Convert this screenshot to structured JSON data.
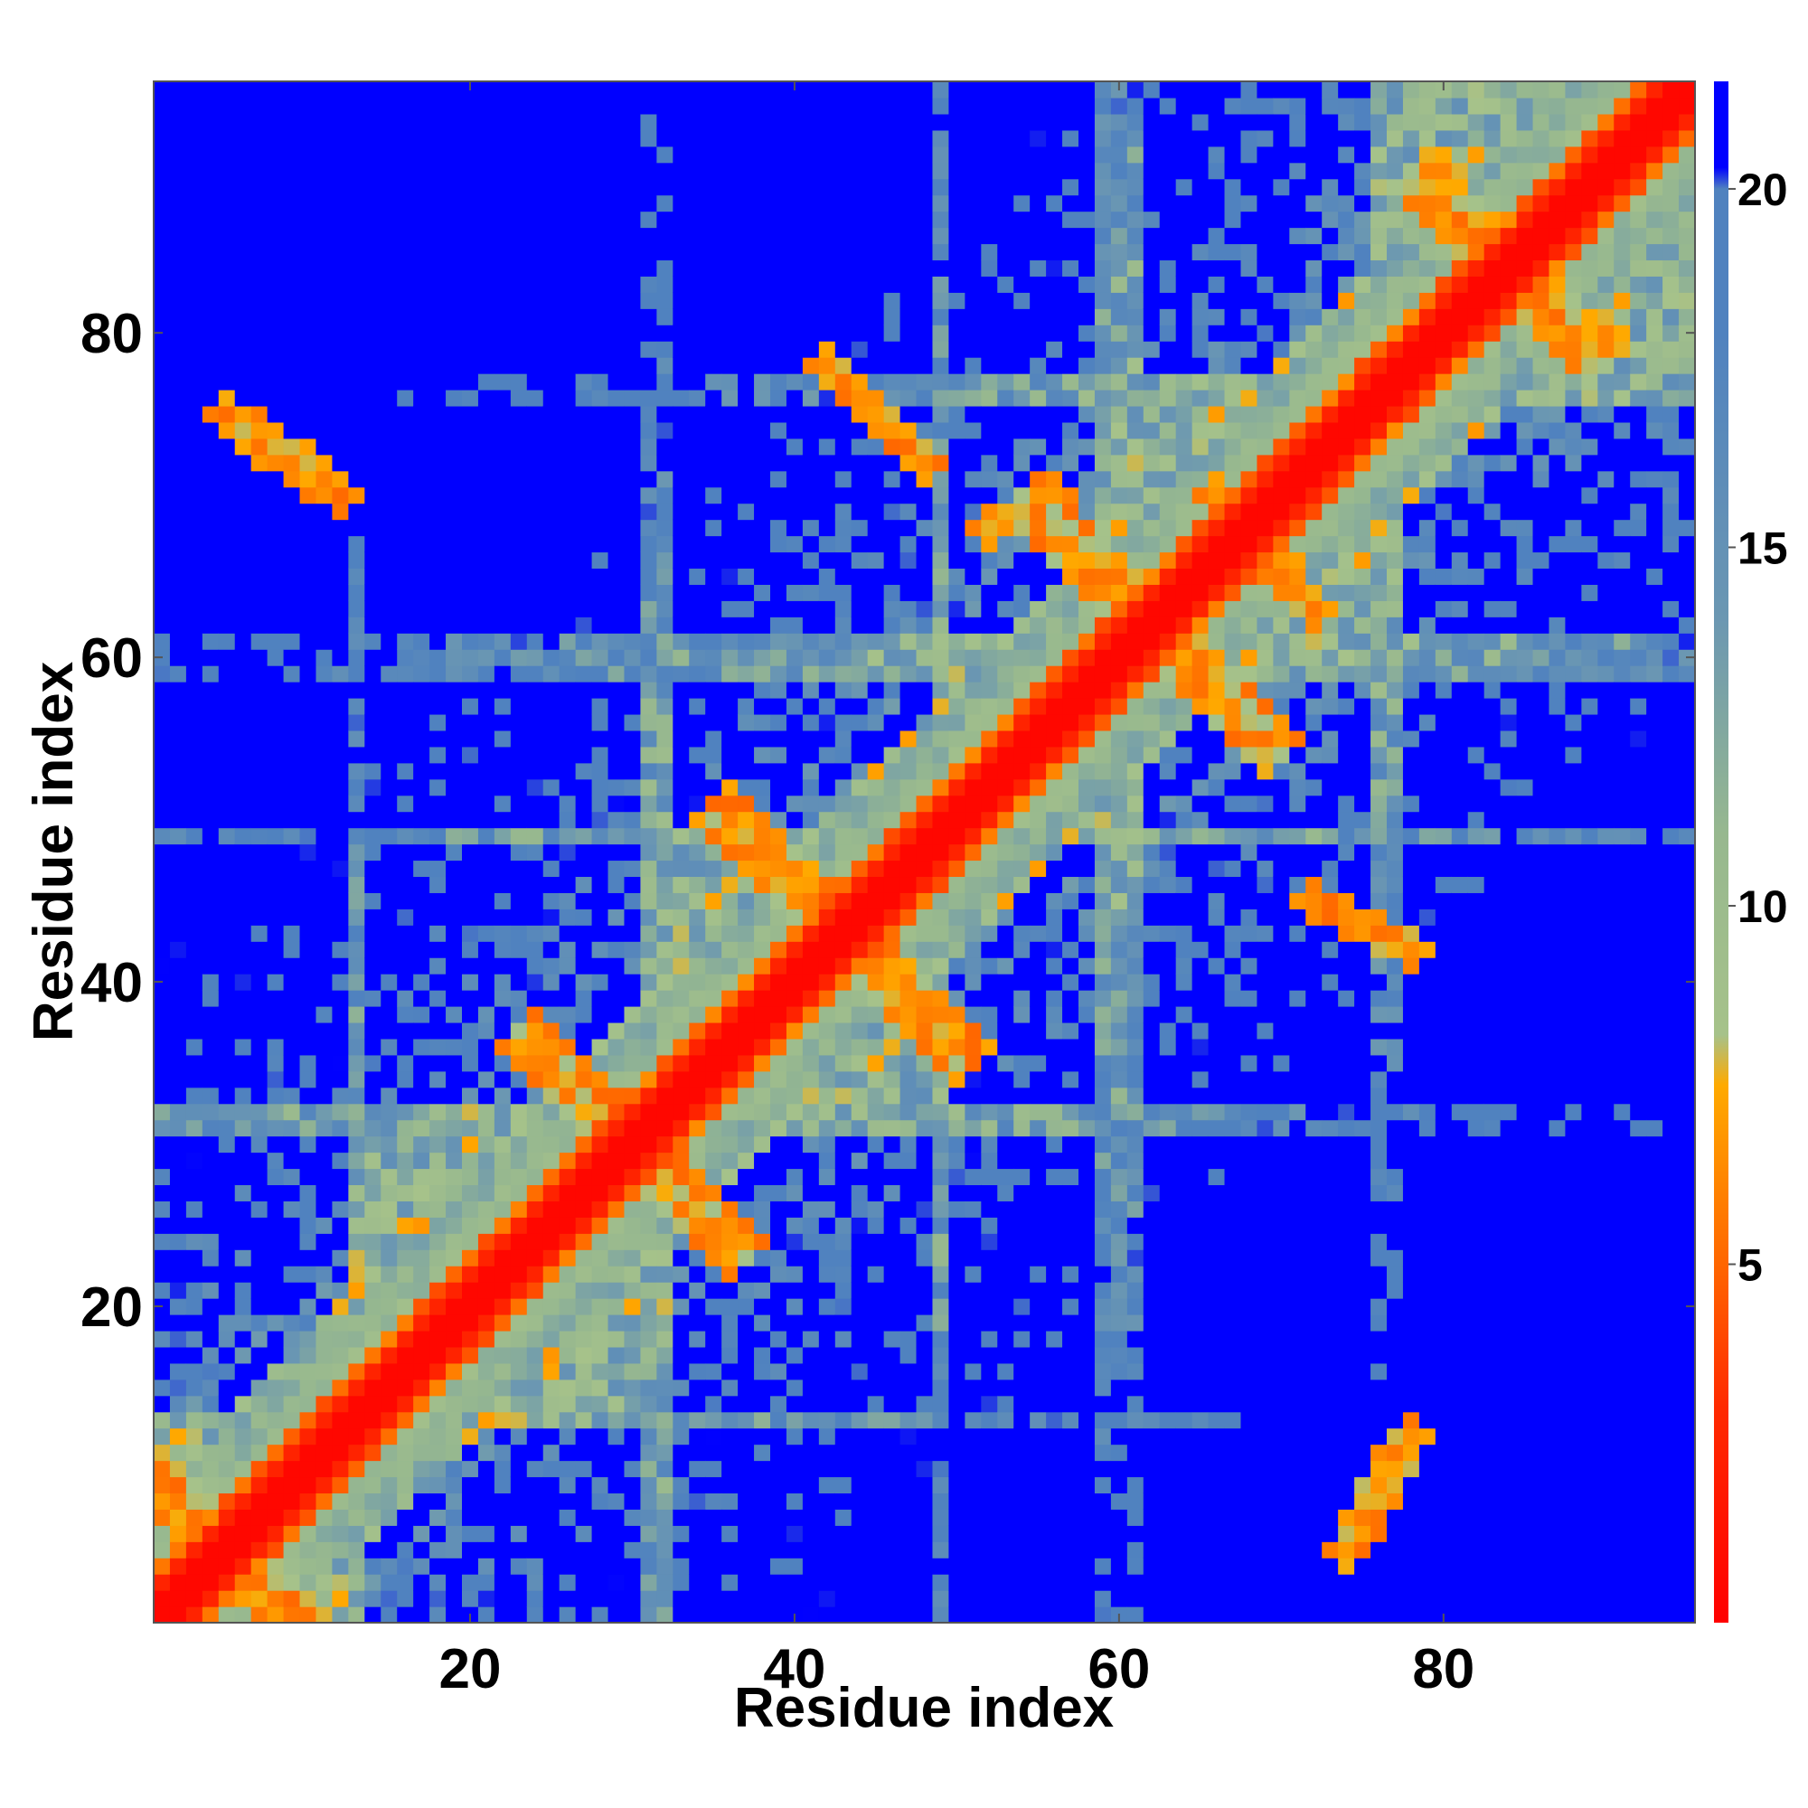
{
  "chart_data": {
    "type": "heatmap",
    "title": "",
    "xlabel": "Residue index",
    "ylabel": "Residue index",
    "n": 95,
    "xlim": [
      0.5,
      95.5
    ],
    "ylim": [
      0.5,
      95.5
    ],
    "x_ticks": [
      20,
      40,
      60,
      80
    ],
    "y_ticks": [
      20,
      40,
      60,
      80
    ],
    "x_tick_labels": [
      "20",
      "40",
      "60",
      "80"
    ],
    "y_tick_labels": [
      "20",
      "40",
      "60",
      "80"
    ],
    "colorbar": {
      "range": [
        0,
        21.5
      ],
      "ticks": [
        5,
        10,
        15,
        20
      ],
      "tick_labels": [
        "5",
        "10",
        "15",
        "20"
      ],
      "stops": [
        {
          "value": 0,
          "color": "#ff0000"
        },
        {
          "value": 3,
          "color": "#ff2a00"
        },
        {
          "value": 5,
          "color": "#ff6600"
        },
        {
          "value": 7.5,
          "color": "#ffaa00"
        },
        {
          "value": 8.2,
          "color": "#a6c28a"
        },
        {
          "value": 11,
          "color": "#97b88f"
        },
        {
          "value": 14,
          "color": "#6b97b2"
        },
        {
          "value": 18,
          "color": "#5082bf"
        },
        {
          "value": 20,
          "color": "#5082bf"
        },
        {
          "value": 20.3,
          "color": "#0000ff"
        },
        {
          "value": 21.5,
          "color": "#0000ff"
        }
      ]
    },
    "structure": {
      "description_of_values": "Pairwise residue distance matrix (values in colorbar units); diagonal ~0, secondary-structure contacts 4-8, far pairs >20.",
      "antidiagonal_contacts": [
        {
          "center": [
            5,
            5
          ],
          "span": 8
        },
        {
          "center": [
            42,
            42
          ],
          "span": 12
        },
        {
          "center": [
            60,
            60
          ],
          "span": 12
        },
        {
          "center": [
            88,
            88
          ],
          "span": 10
        }
      ]
    }
  }
}
